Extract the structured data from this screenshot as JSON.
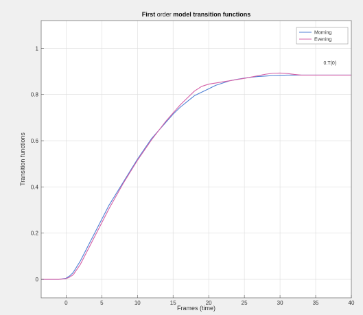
{
  "chart_data": {
    "type": "line",
    "title_parts": [
      {
        "text": "First",
        "weight": "bold"
      },
      {
        "text": " order ",
        "weight": "normal"
      },
      {
        "text": "model transition functions",
        "weight": "bold"
      }
    ],
    "xlabel": "Frames (time)",
    "ylabel": "Transition functions",
    "xlim": [
      -3.5,
      40
    ],
    "ylim": [
      -0.08,
      1.12
    ],
    "xticks": [
      0,
      5,
      10,
      15,
      20,
      25,
      30,
      35,
      40
    ],
    "xtick_labels": [
      "0",
      "5",
      "10",
      "15",
      "20",
      "25",
      "30",
      "35",
      "40"
    ],
    "yticks": [
      0,
      0.2,
      0.4,
      0.6,
      0.8,
      1
    ],
    "ytick_labels": [
      "0",
      "0.2",
      "0.4",
      "0.6",
      "0.8",
      "1"
    ],
    "grid": true,
    "legend_position": "top-right",
    "annotation": {
      "text": "0.T(0)",
      "x": 37,
      "y": 0.93
    },
    "series": [
      {
        "name": "Morning",
        "color": "#4f7fd4",
        "x": [
          -3.5,
          -1,
          0,
          0.5,
          1,
          2,
          3,
          4,
          5,
          6,
          7,
          8,
          9,
          10,
          11,
          12,
          13,
          14,
          15,
          16,
          17,
          18,
          19,
          20,
          21,
          22,
          23,
          24,
          25,
          26,
          27,
          28,
          29,
          30,
          31,
          32,
          33,
          34,
          35,
          36,
          37,
          38,
          39,
          40
        ],
        "values": [
          0,
          0,
          0.005,
          0.015,
          0.03,
          0.08,
          0.14,
          0.2,
          0.26,
          0.32,
          0.37,
          0.42,
          0.47,
          0.52,
          0.565,
          0.61,
          0.645,
          0.68,
          0.715,
          0.745,
          0.77,
          0.795,
          0.81,
          0.825,
          0.84,
          0.85,
          0.86,
          0.866,
          0.871,
          0.875,
          0.878,
          0.88,
          0.882,
          0.883,
          0.884,
          0.884,
          0.884,
          0.884,
          0.884,
          0.884,
          0.884,
          0.884,
          0.884,
          0.884
        ]
      },
      {
        "name": "Evening",
        "color": "#d45fa6",
        "x": [
          -3.5,
          -1,
          0,
          0.5,
          1,
          2,
          3,
          4,
          5,
          6,
          7,
          8,
          9,
          10,
          11,
          12,
          13,
          14,
          15,
          16,
          17,
          18,
          19,
          20,
          21,
          22,
          23,
          24,
          25,
          26,
          27,
          28,
          29,
          30,
          31,
          32,
          33,
          34,
          35,
          36,
          37,
          38,
          39,
          40
        ],
        "values": [
          0,
          0,
          0.003,
          0.01,
          0.02,
          0.065,
          0.125,
          0.185,
          0.245,
          0.305,
          0.36,
          0.415,
          0.465,
          0.515,
          0.56,
          0.605,
          0.645,
          0.685,
          0.72,
          0.755,
          0.785,
          0.815,
          0.835,
          0.845,
          0.85,
          0.855,
          0.86,
          0.865,
          0.87,
          0.876,
          0.882,
          0.888,
          0.892,
          0.893,
          0.891,
          0.887,
          0.884,
          0.884,
          0.884,
          0.884,
          0.884,
          0.884,
          0.884,
          0.884
        ]
      }
    ]
  }
}
